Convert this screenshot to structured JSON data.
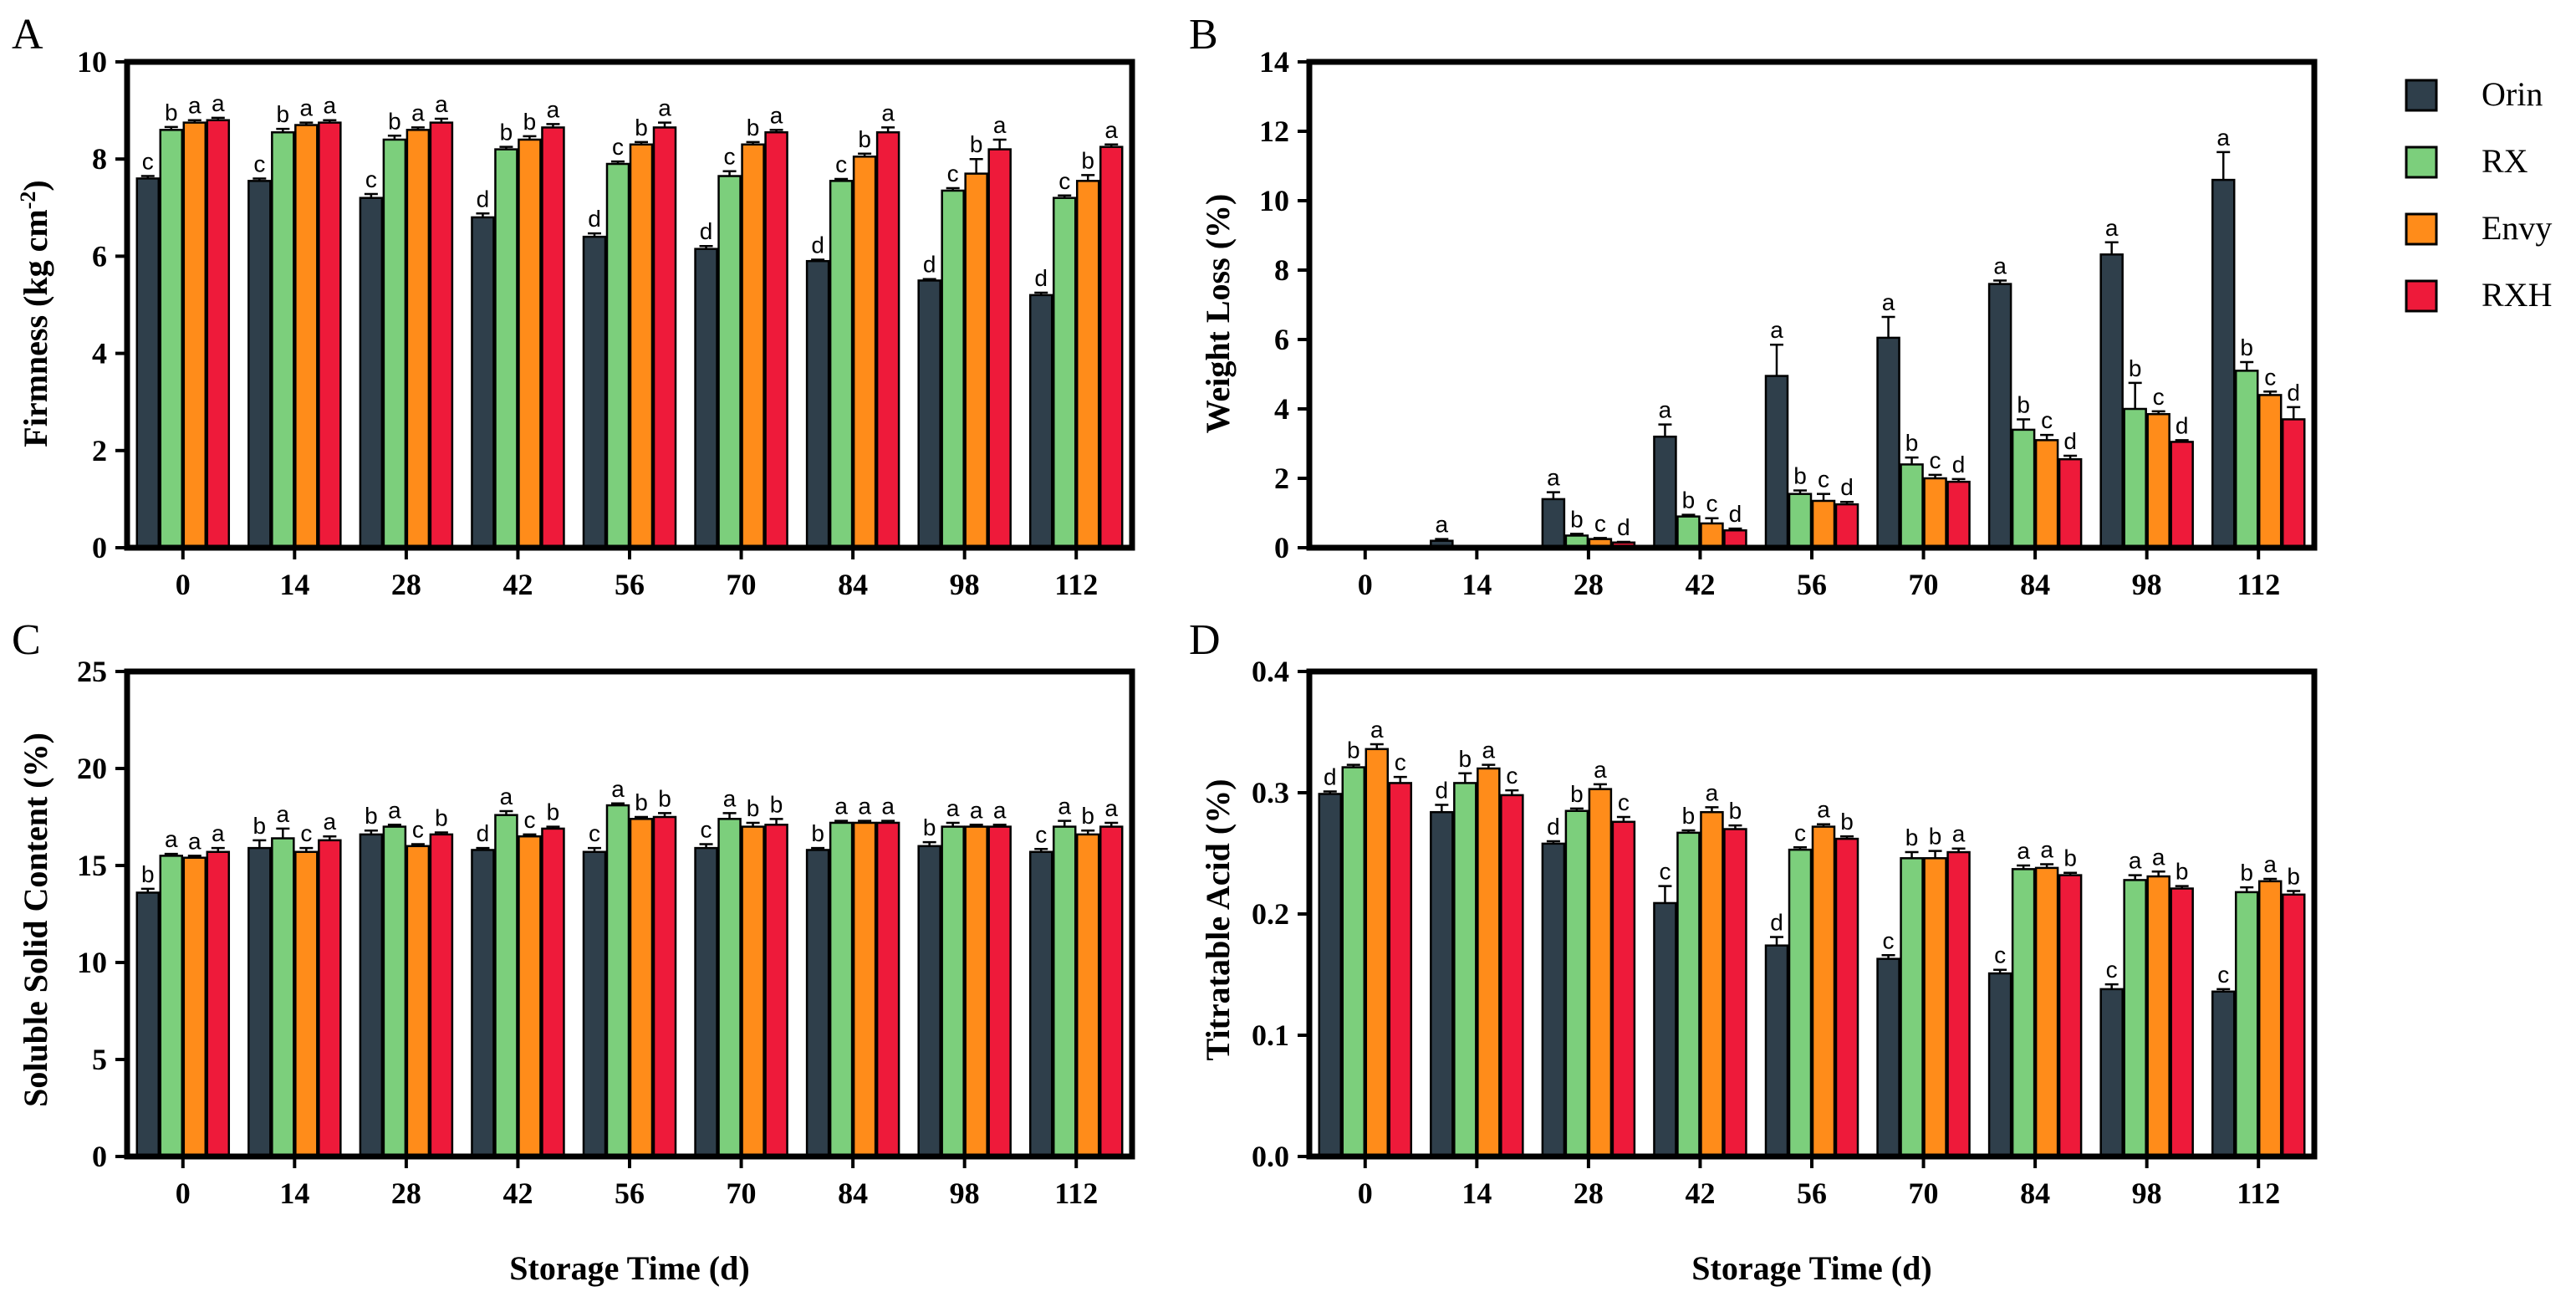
{
  "colors": {
    "Orin": "#2f3f4b",
    "RX": "#7ccf7c",
    "Envy": "#ff8c1a",
    "RXH": "#ee1a3a"
  },
  "legend": [
    "Orin",
    "RX",
    "Envy",
    "RXH"
  ],
  "chart_data": [
    {
      "panel": "A",
      "type": "bar",
      "ylabel": "Firmness (kg cm⁻²)",
      "xlabel": "",
      "ylim": [
        0,
        10
      ],
      "yticks": [
        "0",
        "2",
        "4",
        "6",
        "8",
        "10"
      ],
      "categories": [
        "0",
        "14",
        "28",
        "42",
        "56",
        "70",
        "84",
        "98",
        "112"
      ],
      "series": [
        {
          "name": "Orin",
          "values": [
            7.6,
            7.55,
            7.2,
            6.8,
            6.4,
            6.15,
            5.9,
            5.5,
            5.2
          ],
          "errors": [
            0.05,
            0.05,
            0.08,
            0.08,
            0.07,
            0.06,
            0.03,
            0.03,
            0.05
          ],
          "letters": [
            "c",
            "c",
            "c",
            "d",
            "d",
            "d",
            "d",
            "d",
            "d"
          ]
        },
        {
          "name": "RX",
          "values": [
            8.6,
            8.55,
            8.4,
            8.2,
            7.9,
            7.65,
            7.55,
            7.35,
            7.2
          ],
          "errors": [
            0.06,
            0.07,
            0.08,
            0.05,
            0.05,
            0.1,
            0.04,
            0.05,
            0.05
          ],
          "letters": [
            "b",
            "b",
            "b",
            "b",
            "c",
            "c",
            "c",
            "c",
            "c"
          ]
        },
        {
          "name": "Envy",
          "values": [
            8.75,
            8.7,
            8.6,
            8.4,
            8.3,
            8.3,
            8.05,
            7.7,
            7.55
          ],
          "errors": [
            0.05,
            0.05,
            0.05,
            0.07,
            0.05,
            0.05,
            0.06,
            0.3,
            0.12
          ],
          "letters": [
            "a",
            "a",
            "a",
            "b",
            "b",
            "b",
            "b",
            "b",
            "b"
          ]
        },
        {
          "name": "RXH",
          "values": [
            8.8,
            8.75,
            8.75,
            8.65,
            8.65,
            8.55,
            8.55,
            8.2,
            8.25
          ],
          "errors": [
            0.05,
            0.05,
            0.08,
            0.07,
            0.1,
            0.05,
            0.1,
            0.2,
            0.05
          ],
          "letters": [
            "a",
            "a",
            "a",
            "a",
            "a",
            "a",
            "a",
            "a",
            "a"
          ]
        }
      ]
    },
    {
      "panel": "B",
      "type": "bar",
      "ylabel": "Weight Loss (%)",
      "xlabel": "",
      "ylim": [
        0,
        14
      ],
      "yticks": [
        "0",
        "2",
        "4",
        "6",
        "8",
        "10",
        "12",
        "14"
      ],
      "categories": [
        "0",
        "14",
        "28",
        "42",
        "56",
        "70",
        "84",
        "98",
        "112"
      ],
      "series": [
        {
          "name": "Orin",
          "values": [
            0,
            0.2,
            1.4,
            3.2,
            4.95,
            6.05,
            7.6,
            8.45,
            10.6
          ],
          "errors": [
            0,
            0.05,
            0.2,
            0.35,
            0.9,
            0.6,
            0.1,
            0.35,
            0.8
          ],
          "letters": [
            "",
            "a",
            "a",
            "a",
            "a",
            "a",
            "a",
            "a",
            "a"
          ]
        },
        {
          "name": "RX",
          "values": [
            0,
            0,
            0.35,
            0.9,
            1.55,
            2.4,
            3.4,
            4.0,
            5.1
          ],
          "errors": [
            0,
            0,
            0.05,
            0.05,
            0.1,
            0.2,
            0.3,
            0.75,
            0.25
          ],
          "letters": [
            "",
            "",
            "b",
            "b",
            "b",
            "b",
            "b",
            "b",
            "b"
          ]
        },
        {
          "name": "Envy",
          "values": [
            0,
            0,
            0.25,
            0.7,
            1.35,
            2.0,
            3.1,
            3.85,
            4.4
          ],
          "errors": [
            0,
            0,
            0.03,
            0.15,
            0.2,
            0.1,
            0.15,
            0.08,
            0.1
          ],
          "letters": [
            "",
            "",
            "c",
            "c",
            "c",
            "c",
            "c",
            "c",
            "c"
          ]
        },
        {
          "name": "RXH",
          "values": [
            0,
            0,
            0.15,
            0.5,
            1.25,
            1.9,
            2.55,
            3.05,
            3.7
          ],
          "errors": [
            0,
            0,
            0.02,
            0.05,
            0.07,
            0.08,
            0.1,
            0.05,
            0.35
          ],
          "letters": [
            "",
            "",
            "d",
            "d",
            "d",
            "d",
            "d",
            "d",
            "d"
          ]
        }
      ]
    },
    {
      "panel": "C",
      "type": "bar",
      "ylabel": "Soluble Solid Content (%)",
      "xlabel": "Storage Time (d)",
      "ylim": [
        0,
        25
      ],
      "yticks": [
        "0",
        "5",
        "10",
        "15",
        "20",
        "25"
      ],
      "categories": [
        "0",
        "14",
        "28",
        "42",
        "56",
        "70",
        "84",
        "98",
        "112"
      ],
      "series": [
        {
          "name": "Orin",
          "values": [
            13.6,
            15.9,
            16.6,
            15.8,
            15.7,
            15.9,
            15.8,
            16.0,
            15.7
          ],
          "errors": [
            0.2,
            0.4,
            0.2,
            0.1,
            0.2,
            0.2,
            0.1,
            0.2,
            0.15
          ],
          "letters": [
            "b",
            "b",
            "b",
            "d",
            "c",
            "c",
            "b",
            "b",
            "c"
          ]
        },
        {
          "name": "RX",
          "values": [
            15.5,
            16.4,
            17.0,
            17.6,
            18.1,
            17.4,
            17.2,
            17.0,
            17.0
          ],
          "errors": [
            0.1,
            0.5,
            0.1,
            0.2,
            0.1,
            0.3,
            0.1,
            0.2,
            0.3
          ],
          "letters": [
            "a",
            "a",
            "a",
            "a",
            "a",
            "a",
            "a",
            "a",
            "a"
          ]
        },
        {
          "name": "Envy",
          "values": [
            15.4,
            15.7,
            16.0,
            16.5,
            17.4,
            17.0,
            17.2,
            17.0,
            16.6
          ],
          "errors": [
            0.1,
            0.2,
            0.1,
            0.1,
            0.1,
            0.2,
            0.1,
            0.1,
            0.2
          ],
          "letters": [
            "a",
            "c",
            "c",
            "c",
            "b",
            "b",
            "a",
            "a",
            "b"
          ]
        },
        {
          "name": "RXH",
          "values": [
            15.7,
            16.3,
            16.6,
            16.9,
            17.5,
            17.1,
            17.2,
            17.0,
            17.0
          ],
          "errors": [
            0.2,
            0.2,
            0.1,
            0.1,
            0.2,
            0.3,
            0.1,
            0.1,
            0.2
          ],
          "letters": [
            "a",
            "a",
            "b",
            "b",
            "b",
            "b",
            "a",
            "a",
            "a"
          ]
        }
      ]
    },
    {
      "panel": "D",
      "type": "bar",
      "ylabel": "Titratable Acid (%)",
      "xlabel": "Storage Time (d)",
      "ylim": [
        0,
        0.4
      ],
      "yticks": [
        "0.0",
        "0.1",
        "0.2",
        "0.3",
        "0.4"
      ],
      "categories": [
        "0",
        "14",
        "28",
        "42",
        "56",
        "70",
        "84",
        "98",
        "112"
      ],
      "series": [
        {
          "name": "Orin",
          "values": [
            0.299,
            0.284,
            0.258,
            0.209,
            0.174,
            0.163,
            0.151,
            0.138,
            0.136
          ],
          "errors": [
            0.002,
            0.006,
            0.002,
            0.014,
            0.007,
            0.003,
            0.003,
            0.004,
            0.002
          ],
          "letters": [
            "d",
            "d",
            "d",
            "c",
            "d",
            "c",
            "c",
            "c",
            "c"
          ]
        },
        {
          "name": "RX",
          "values": [
            0.321,
            0.308,
            0.285,
            0.267,
            0.253,
            0.246,
            0.237,
            0.228,
            0.218
          ],
          "errors": [
            0.002,
            0.008,
            0.002,
            0.002,
            0.002,
            0.005,
            0.003,
            0.004,
            0.004
          ],
          "letters": [
            "b",
            "b",
            "b",
            "b",
            "c",
            "b",
            "a",
            "a",
            "b"
          ]
        },
        {
          "name": "Envy",
          "values": [
            0.336,
            0.32,
            0.303,
            0.284,
            0.272,
            0.246,
            0.238,
            0.231,
            0.227
          ],
          "errors": [
            0.004,
            0.003,
            0.004,
            0.004,
            0.002,
            0.006,
            0.003,
            0.004,
            0.002
          ],
          "letters": [
            "a",
            "a",
            "a",
            "a",
            "a",
            "b",
            "a",
            "a",
            "a"
          ]
        },
        {
          "name": "RXH",
          "values": [
            0.308,
            0.298,
            0.276,
            0.27,
            0.262,
            0.251,
            0.232,
            0.221,
            0.216
          ],
          "errors": [
            0.005,
            0.004,
            0.004,
            0.003,
            0.002,
            0.003,
            0.002,
            0.002,
            0.003
          ],
          "letters": [
            "c",
            "c",
            "c",
            "b",
            "b",
            "a",
            "b",
            "b",
            "b"
          ]
        }
      ]
    }
  ]
}
